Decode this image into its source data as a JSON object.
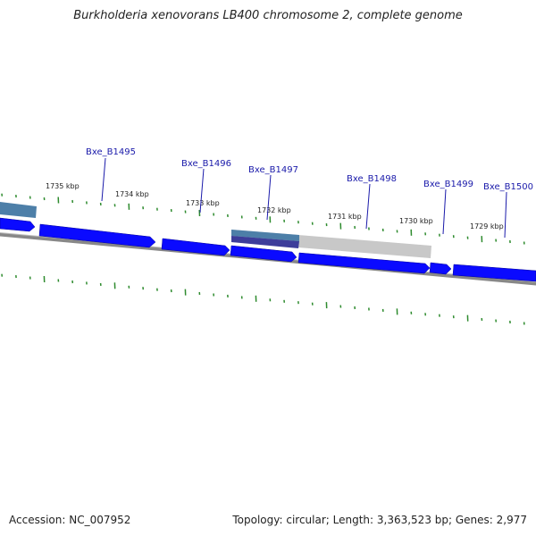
{
  "title": "Burkholderia xenovorans LB400 chromosome 2, complete genome",
  "footer": {
    "accession_label": "Accession:",
    "accession": "NC_007952",
    "summary": "Topology: circular; Length: 3,363,523 bp; Genes: 2,977"
  },
  "colors": {
    "gene_fill": "#0a0aff",
    "gene_edge": "#00009a",
    "tick": "#2e8b2e",
    "backbone": "#888888",
    "gene_label": "#1a1aaa",
    "highlight_grey": "#c8c8c8",
    "highlight_blue": "#4d7fa8",
    "highlight_purple": "#3d3d9a"
  },
  "icons": {
    "gene_arrow": "right-arrow-shape"
  },
  "kbp_labels": [
    "1735 kbp",
    "1734 kbp",
    "1733 kbp",
    "1732 kbp",
    "1731 kbp",
    "1730 kbp",
    "1729 kbp"
  ],
  "gene_labels": [
    "Bxe_B1495",
    "Bxe_B1496",
    "Bxe_B1497",
    "Bxe_B1498",
    "Bxe_B1499",
    "Bxe_B1500"
  ]
}
